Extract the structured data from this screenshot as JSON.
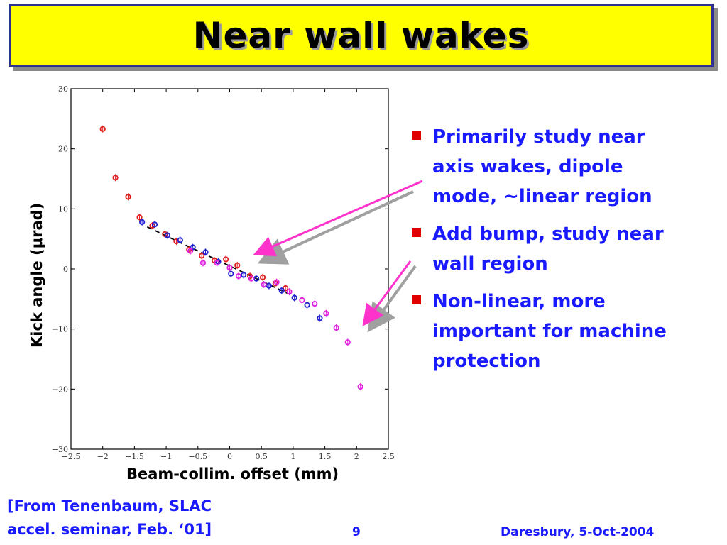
{
  "slide": {
    "title": "Near wall wakes",
    "bullets": [
      "Primarily study near axis wakes, dipole mode, ~linear region",
      "Add bump, study near wall region",
      "Non-linear, more important for machine protection"
    ],
    "citation_line1": "[From Tenenbaum, SLAC",
    "citation_line2": "accel. seminar, Feb. ‘01]",
    "page_number": "9",
    "footer": "Daresbury, 5-Oct-2004",
    "colors": {
      "bullet_text": "#1a1aff",
      "bullet_marker": "#e00000",
      "title_bg": "#ffff00",
      "title_border": "#2e3192",
      "arrow_pink": "#ff33cc",
      "arrow_gray": "#a0a0a0"
    }
  },
  "chart_data": {
    "type": "scatter",
    "xlabel": "Beam-collim. offset (mm)",
    "ylabel": "Kick angle (μrad)",
    "xlim": [
      -2.5,
      2.5
    ],
    "ylim": [
      -30,
      30
    ],
    "xticks": [
      "−2.5",
      "−2",
      "−1.5",
      "−1",
      "−0.5",
      "0",
      "0.5",
      "1",
      "1.5",
      "2",
      "2.5"
    ],
    "yticks": [
      "−30",
      "−20",
      "−10",
      "0",
      "10",
      "20",
      "30"
    ],
    "series": [
      {
        "color": "#e02020",
        "points": [
          [
            -2.0,
            23.3
          ],
          [
            -1.8,
            15.2
          ],
          [
            -1.6,
            12.0
          ],
          [
            -1.42,
            8.6
          ],
          [
            -1.22,
            7.2
          ],
          [
            -1.02,
            5.8
          ],
          [
            -0.84,
            4.6
          ],
          [
            -0.64,
            3.2
          ],
          [
            -0.44,
            2.2
          ],
          [
            -0.24,
            1.4
          ],
          [
            -0.06,
            1.6
          ],
          [
            0.12,
            0.6
          ],
          [
            0.32,
            -1.2
          ],
          [
            0.52,
            -1.4
          ],
          [
            0.72,
            -2.4
          ],
          [
            0.88,
            -3.2
          ]
        ]
      },
      {
        "color": "#2020d0",
        "points": [
          [
            -1.38,
            7.8
          ],
          [
            -1.18,
            7.4
          ],
          [
            -0.98,
            5.6
          ],
          [
            -0.78,
            4.8
          ],
          [
            -0.58,
            3.6
          ],
          [
            -0.38,
            2.8
          ],
          [
            -0.18,
            1.2
          ],
          [
            0.02,
            -0.8
          ],
          [
            0.22,
            -1.0
          ],
          [
            0.42,
            -1.6
          ],
          [
            0.62,
            -2.8
          ],
          [
            0.82,
            -3.6
          ],
          [
            1.02,
            -4.8
          ],
          [
            1.22,
            -6.0
          ],
          [
            1.42,
            -8.2
          ]
        ]
      },
      {
        "color": "#e020e0",
        "points": [
          [
            -0.62,
            3.0
          ],
          [
            -0.42,
            1.0
          ],
          [
            -0.2,
            1.0
          ],
          [
            0.0,
            0.2
          ],
          [
            0.14,
            -1.2
          ],
          [
            0.34,
            -1.6
          ],
          [
            0.54,
            -2.6
          ],
          [
            0.74,
            -2.2
          ],
          [
            0.94,
            -3.8
          ],
          [
            1.14,
            -5.2
          ],
          [
            1.34,
            -5.8
          ],
          [
            1.52,
            -7.4
          ],
          [
            1.68,
            -9.8
          ],
          [
            1.86,
            -12.2
          ],
          [
            2.06,
            -19.6
          ]
        ]
      }
    ],
    "fit_line": {
      "from": [
        -1.3,
        7.0
      ],
      "to": [
        1.0,
        -4.5
      ],
      "style": "dashed"
    }
  }
}
